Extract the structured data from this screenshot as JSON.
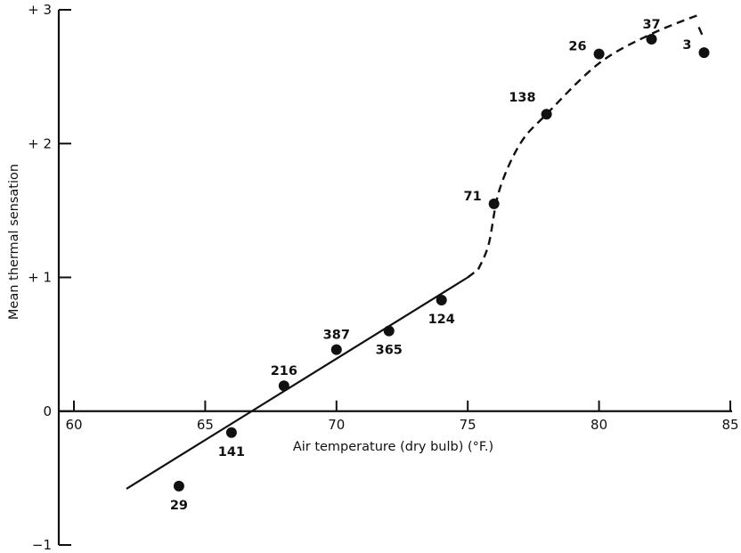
{
  "chart_data": {
    "type": "scatter",
    "xlabel": "Air temperature (dry bulb) (°F.)",
    "ylabel": "Mean thermal sensation",
    "xlim": [
      60,
      85
    ],
    "ylim": [
      -1,
      3
    ],
    "x_ticks": [
      {
        "value": 60,
        "label": "60"
      },
      {
        "value": 65,
        "label": "65"
      },
      {
        "value": 70,
        "label": "70"
      },
      {
        "value": 75,
        "label": "75"
      },
      {
        "value": 80,
        "label": "80"
      },
      {
        "value": 85,
        "label": "85"
      }
    ],
    "y_ticks": [
      {
        "value": 3,
        "label": "+ 3"
      },
      {
        "value": 2,
        "label": "+ 2"
      },
      {
        "value": 1,
        "label": "+ 1"
      },
      {
        "value": 0,
        "label": "0"
      },
      {
        "value": -1,
        "label": "−1"
      }
    ],
    "points": [
      {
        "x": 64,
        "y": -0.56,
        "label": "29",
        "label_pos": "below"
      },
      {
        "x": 66,
        "y": -0.16,
        "label": "141",
        "label_pos": "below"
      },
      {
        "x": 68,
        "y": 0.19,
        "label": "216",
        "label_pos": "above"
      },
      {
        "x": 70,
        "y": 0.46,
        "label": "387",
        "label_pos": "above"
      },
      {
        "x": 72,
        "y": 0.6,
        "label": "365",
        "label_pos": "below"
      },
      {
        "x": 74,
        "y": 0.83,
        "label": "124",
        "label_pos": "below"
      },
      {
        "x": 76,
        "y": 1.55,
        "label": "71",
        "label_pos": "left"
      },
      {
        "x": 78,
        "y": 2.22,
        "label": "138",
        "label_pos": "above-left"
      },
      {
        "x": 80,
        "y": 2.67,
        "label": "26",
        "label_pos": "left"
      },
      {
        "x": 82,
        "y": 2.78,
        "label": "37",
        "label_pos": "above"
      },
      {
        "x": 84,
        "y": 2.68,
        "label": "3",
        "label_pos": "left"
      }
    ],
    "fit_line": [
      [
        62,
        -0.58
      ],
      [
        75,
        1.0
      ]
    ],
    "fit_curve": [
      [
        75.4,
        1.06
      ],
      [
        75.8,
        1.25
      ],
      [
        76.2,
        1.65
      ],
      [
        77,
        2.0
      ],
      [
        78,
        2.22
      ],
      [
        80,
        2.6
      ],
      [
        82,
        2.82
      ],
      [
        83.9,
        2.97
      ]
    ],
    "fit_curve_tail": [
      [
        83.8,
        2.87
      ],
      [
        84,
        2.78
      ]
    ],
    "grid": false,
    "legend": "none"
  }
}
